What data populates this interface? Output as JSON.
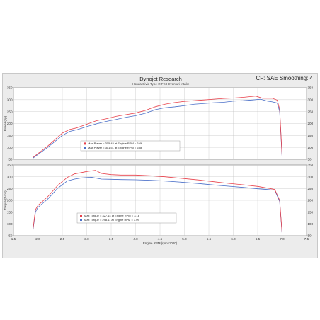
{
  "header": {
    "title": "Dynojet Research",
    "subtitle": "Honda Civic Type-R FK8 Eventuri Intake",
    "right": "CF: SAE Smoothing: 4"
  },
  "colors": {
    "red_run": "#e8404a",
    "blue_run": "#4a6fc8",
    "grid": "#c4c4c4",
    "plot_bg": "#ffffff"
  },
  "chart_data": [
    {
      "type": "line",
      "id": "power",
      "xlabel": "",
      "ylabel": "Power (hp)",
      "y2label": "",
      "xlim": [
        1.5,
        7.5
      ],
      "ylim": [
        50,
        350
      ],
      "x_ticks": [],
      "y_ticks": [
        "50",
        "100",
        "150",
        "200",
        "250",
        "300",
        "350"
      ],
      "y_tick_values": [
        50,
        100,
        150,
        200,
        250,
        300,
        350
      ],
      "grid": true,
      "legend_position": "lower-left",
      "legend": [
        "Max Power = 315.45 at Engine RPM = 6.46",
        "Max Power = 301.51 at Engine RPM = 6.56"
      ],
      "series": [
        {
          "color": "red",
          "x": [
            1.9,
            2.2,
            2.5,
            2.65,
            2.8,
            3.0,
            3.2,
            3.4,
            3.6,
            3.8,
            4.0,
            4.2,
            4.4,
            4.6,
            4.8,
            5.0,
            5.2,
            5.4,
            5.6,
            5.8,
            6.0,
            6.2,
            6.46,
            6.6,
            6.8,
            6.9,
            6.95,
            7.0
          ],
          "y": [
            58,
            105,
            160,
            175,
            182,
            197,
            212,
            220,
            230,
            237,
            244,
            255,
            270,
            281,
            288,
            293,
            296,
            299,
            302,
            305,
            307,
            310,
            315,
            306,
            306,
            298,
            260,
            60
          ]
        },
        {
          "color": "blue",
          "x": [
            1.9,
            2.2,
            2.5,
            2.65,
            2.8,
            3.0,
            3.2,
            3.4,
            3.6,
            3.8,
            4.0,
            4.2,
            4.4,
            4.6,
            4.8,
            5.0,
            5.2,
            5.4,
            5.6,
            5.8,
            6.0,
            6.2,
            6.4,
            6.56,
            6.7,
            6.8,
            6.9,
            6.95,
            7.0
          ],
          "y": [
            55,
            100,
            150,
            167,
            174,
            187,
            199,
            209,
            217,
            226,
            233,
            243,
            258,
            266,
            270,
            275,
            281,
            284,
            287,
            289,
            294,
            296,
            299,
            302,
            294,
            291,
            286,
            250,
            58
          ]
        }
      ]
    },
    {
      "type": "line",
      "id": "torque",
      "xlabel": "Engine RPM (rpmx1000)",
      "ylabel": "Torque (ft-lbs)",
      "y2label": "",
      "xlim": [
        1.5,
        7.5
      ],
      "ylim": [
        50,
        350
      ],
      "x_ticks": [
        "1.5",
        "2.0",
        "2.5",
        "3.0",
        "3.5",
        "4.0",
        "4.5",
        "5.0",
        "5.5",
        "6.0",
        "6.5",
        "7.0",
        "7.5"
      ],
      "x_tick_values": [
        1.5,
        2.0,
        2.5,
        3.0,
        3.5,
        4.0,
        4.5,
        5.0,
        5.5,
        6.0,
        6.5,
        7.0,
        7.5
      ],
      "y_ticks": [
        "50",
        "100",
        "150",
        "200",
        "250",
        "300",
        "350"
      ],
      "y_tick_values": [
        50,
        100,
        150,
        200,
        250,
        300,
        350
      ],
      "grid": true,
      "legend_position": "lower-center",
      "legend": [
        "Max Torque = 327.14 at Engine RPM = 3.18",
        "Max Torque = 298.11 at Engine RPM = 3.09"
      ],
      "series": [
        {
          "color": "red",
          "x": [
            1.9,
            1.95,
            2.0,
            2.2,
            2.4,
            2.6,
            2.75,
            2.9,
            3.0,
            3.18,
            3.3,
            3.5,
            3.7,
            4.0,
            4.3,
            4.6,
            5.0,
            5.3,
            5.6,
            5.9,
            6.2,
            6.5,
            6.7,
            6.85,
            6.95,
            7.0
          ],
          "y": [
            78,
            160,
            178,
            215,
            262,
            297,
            312,
            318,
            322,
            327,
            314,
            309,
            307,
            307,
            304,
            300,
            292,
            286,
            279,
            272,
            266,
            259,
            252,
            246,
            200,
            60
          ]
        },
        {
          "color": "blue",
          "x": [
            1.9,
            1.95,
            2.0,
            2.2,
            2.4,
            2.6,
            2.75,
            2.9,
            3.09,
            3.3,
            3.5,
            3.7,
            4.0,
            4.3,
            4.6,
            5.0,
            5.3,
            5.6,
            5.9,
            6.2,
            6.5,
            6.7,
            6.85,
            6.95,
            7.0
          ],
          "y": [
            75,
            150,
            170,
            205,
            250,
            282,
            290,
            295,
            298,
            290,
            289,
            288,
            287,
            285,
            282,
            276,
            271,
            265,
            260,
            255,
            249,
            246,
            243,
            195,
            58
          ]
        }
      ]
    }
  ]
}
